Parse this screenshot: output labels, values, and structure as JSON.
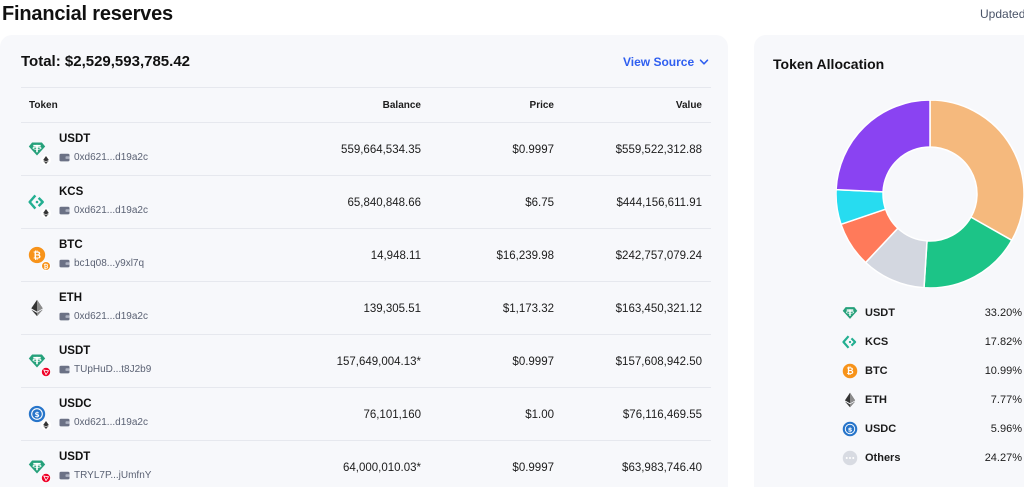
{
  "page": {
    "title": "Financial reserves",
    "updated_label": "Updated"
  },
  "reserves": {
    "total": "Total: $2,529,593,785.42",
    "view_source": "View Source",
    "columns": {
      "token": "Token",
      "balance": "Balance",
      "price": "Price",
      "value": "Value"
    },
    "rows": [
      {
        "symbol": "USDT",
        "address": "0xd621...d19a2c",
        "balance": "559,664,534.35",
        "price": "$0.9997",
        "value": "$559,522,312.88",
        "icon": "usdt-icon",
        "chain_icon": "eth-chain-icon"
      },
      {
        "symbol": "KCS",
        "address": "0xd621...d19a2c",
        "balance": "65,840,848.66",
        "price": "$6.75",
        "value": "$444,156,611.91",
        "icon": "kcs-icon",
        "chain_icon": "eth-chain-icon"
      },
      {
        "symbol": "BTC",
        "address": "bc1q08...y9xl7q",
        "balance": "14,948.11",
        "price": "$16,239.98",
        "value": "$242,757,079.24",
        "icon": "btc-icon",
        "chain_icon": "btc-chain-icon"
      },
      {
        "symbol": "ETH",
        "address": "0xd621...d19a2c",
        "balance": "139,305.51",
        "price": "$1,173.32",
        "value": "$163,450,321.12",
        "icon": "eth-icon",
        "chain_icon": ""
      },
      {
        "symbol": "USDT",
        "address": "TUpHuD...t8J2b9",
        "balance": "157,649,004.13*",
        "price": "$0.9997",
        "value": "$157,608,942.50",
        "icon": "usdt-icon",
        "chain_icon": "tron-chain-icon"
      },
      {
        "symbol": "USDC",
        "address": "0xd621...d19a2c",
        "balance": "76,101,160",
        "price": "$1.00",
        "value": "$76,116,469.55",
        "icon": "usdc-icon",
        "chain_icon": "eth-chain-icon"
      },
      {
        "symbol": "USDT",
        "address": "TRYL7P...jUmfnY",
        "balance": "64,000,010.03*",
        "price": "$0.9997",
        "value": "$63,983,746.40",
        "icon": "usdt-icon",
        "chain_icon": "tron-chain-icon"
      }
    ]
  },
  "allocation": {
    "title": "Token Allocation",
    "legend": [
      {
        "name": "USDT",
        "pct": "33.20%",
        "icon": "usdt-icon"
      },
      {
        "name": "KCS",
        "pct": "17.82%",
        "icon": "kcs-icon"
      },
      {
        "name": "BTC",
        "pct": "10.99%",
        "icon": "btc-icon"
      },
      {
        "name": "ETH",
        "pct": "7.77%",
        "icon": "eth-icon"
      },
      {
        "name": "USDC",
        "pct": "5.96%",
        "icon": "usdc-icon"
      },
      {
        "name": "Others",
        "pct": "24.27%",
        "icon": "others-icon"
      }
    ],
    "chart_data": {
      "type": "pie",
      "categories": [
        "USDT",
        "KCS",
        "BTC",
        "ETH",
        "USDC",
        "Others"
      ],
      "values": [
        33.2,
        17.82,
        10.99,
        7.77,
        5.96,
        24.27
      ],
      "colors": [
        "#f5b97d",
        "#1cc487",
        "#d3d7e0",
        "#ff7a5a",
        "#27dcf0",
        "#8a43f2"
      ]
    }
  },
  "colors": {
    "accent": "#2f5ff0",
    "panel_bg": "#f7f8fb",
    "usdt": "#26a17b",
    "kcs": "#23af91",
    "btc": "#f7931a",
    "usdc": "#2775ca",
    "tron": "#ef0027"
  }
}
